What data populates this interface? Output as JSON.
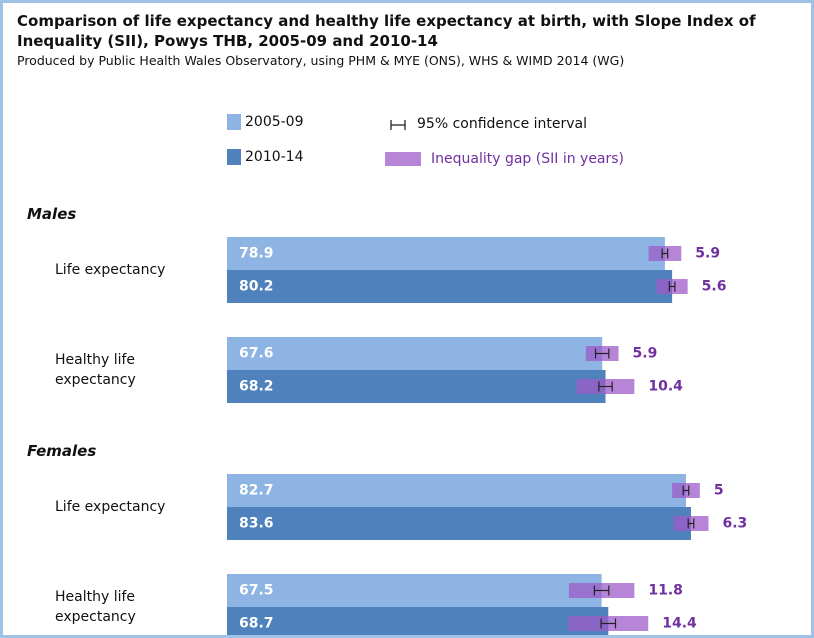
{
  "chart_data": {
    "type": "bar",
    "title": "Comparison of life expectancy and healthy life expectancy at birth, with Slope Index of Inequality (SII), Powys THB, 2005-09 and 2010-14",
    "subtitle": "Produced by Public Health Wales Observatory, using PHM & MYE (ONS), WHS & WIMD 2014 (WG)",
    "ci_legend": "95% confidence interval",
    "gap_legend": "Inequality gap (SII in years)",
    "gap_color": "#9d5cc9",
    "groups": [
      "Males",
      "Females"
    ],
    "categories": [
      "Life expectancy",
      "Healthy life expectancy",
      "Life expectancy",
      "Healthy life expectancy"
    ],
    "xlim": [
      0,
      100
    ],
    "series": [
      {
        "name": "2005-09",
        "color": "#8db4e2",
        "values": [
          78.9,
          67.6,
          82.7,
          67.5
        ],
        "gap": [
          5.9,
          5.9,
          5.0,
          11.8
        ],
        "ci": [
          0.5,
          1.2,
          0.5,
          1.3
        ]
      },
      {
        "name": "2010-14",
        "color": "#4f81bd",
        "values": [
          80.2,
          68.2,
          83.6,
          68.7
        ],
        "gap": [
          5.6,
          10.4,
          6.3,
          14.4
        ],
        "ci": [
          0.5,
          1.2,
          0.5,
          1.3
        ]
      }
    ]
  }
}
